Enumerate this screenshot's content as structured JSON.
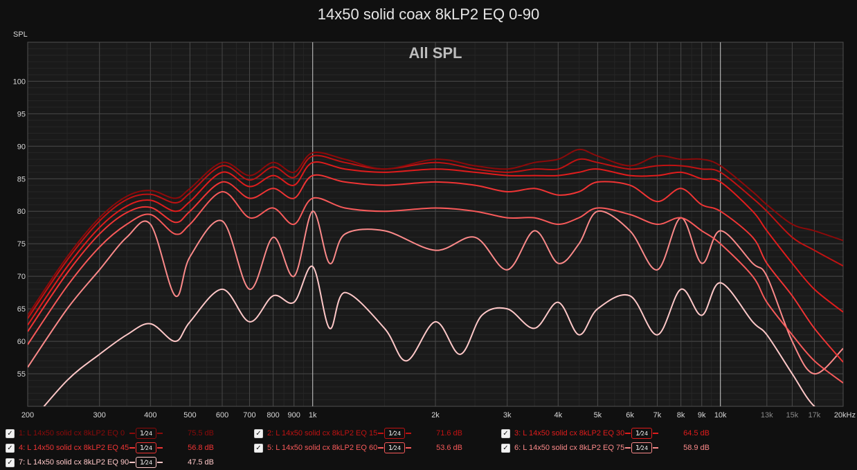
{
  "chart_data": {
    "type": "line",
    "title": "14x50 solid coax 8kLP2 EQ 0-90",
    "subtitle": "All SPL",
    "ylabel": "SPL",
    "xscale": "log",
    "xlim": [
      200,
      20000
    ],
    "ylim": [
      50,
      106
    ],
    "grid": true,
    "x_ticks": [
      {
        "value": 200,
        "label": "200"
      },
      {
        "value": 300,
        "label": "300"
      },
      {
        "value": 400,
        "label": "400"
      },
      {
        "value": 500,
        "label": "500"
      },
      {
        "value": 600,
        "label": "600"
      },
      {
        "value": 700,
        "label": "700"
      },
      {
        "value": 800,
        "label": "800"
      },
      {
        "value": 900,
        "label": "900"
      },
      {
        "value": 1000,
        "label": "1k"
      },
      {
        "value": 2000,
        "label": "2k"
      },
      {
        "value": 3000,
        "label": "3k"
      },
      {
        "value": 4000,
        "label": "4k"
      },
      {
        "value": 5000,
        "label": "5k"
      },
      {
        "value": 6000,
        "label": "6k"
      },
      {
        "value": 7000,
        "label": "7k"
      },
      {
        "value": 8000,
        "label": "8k"
      },
      {
        "value": 9000,
        "label": "9k"
      },
      {
        "value": 10000,
        "label": "10k"
      },
      {
        "value": 13000,
        "label": "13k",
        "dim": true
      },
      {
        "value": 15000,
        "label": "15k",
        "dim": true
      },
      {
        "value": 17000,
        "label": "17k",
        "dim": true
      },
      {
        "value": 20000,
        "label": "20kHz"
      }
    ],
    "y_ticks": [
      {
        "value": 55,
        "label": "55"
      },
      {
        "value": 60,
        "label": "60"
      },
      {
        "value": 65,
        "label": "65"
      },
      {
        "value": 70,
        "label": "70"
      },
      {
        "value": 75,
        "label": "75"
      },
      {
        "value": 80,
        "label": "80"
      },
      {
        "value": 85,
        "label": "85"
      },
      {
        "value": 90,
        "label": "90"
      },
      {
        "value": 95,
        "label": "95"
      },
      {
        "value": 100,
        "label": "100"
      }
    ],
    "series": [
      {
        "name": "1: L 14x50 solid cx 8kLP2 EQ 0",
        "smoothing": "1/24",
        "value_label": "75.5 dB",
        "color": "#8c0a0a",
        "x": [
          200,
          250,
          300,
          350,
          400,
          460,
          500,
          600,
          700,
          800,
          900,
          1000,
          1200,
          1500,
          2000,
          2500,
          3000,
          3500,
          4000,
          4500,
          5000,
          6000,
          7000,
          8000,
          9000,
          10000,
          12000,
          13000,
          15000,
          17000,
          20000
        ],
        "y": [
          64,
          73,
          79,
          82.3,
          83.2,
          82,
          83.5,
          87.5,
          85.5,
          87.5,
          86,
          89,
          88,
          86.5,
          88,
          87,
          86.5,
          87.5,
          88,
          89.5,
          88.5,
          87,
          88.5,
          88,
          88,
          87,
          83,
          81,
          78,
          77,
          75.5
        ]
      },
      {
        "name": "2: L 14x50 solid cx 8kLP2 EQ 15",
        "smoothing": "1/24",
        "value_label": "71.6 dB",
        "color": "#c01212",
        "x": [
          200,
          250,
          300,
          350,
          400,
          460,
          500,
          600,
          700,
          800,
          900,
          1000,
          1200,
          1500,
          2000,
          2500,
          3000,
          3500,
          4000,
          4500,
          5000,
          6000,
          7000,
          8000,
          9000,
          10000,
          12000,
          13000,
          15000,
          17000,
          20000
        ],
        "y": [
          63.5,
          72.5,
          78.5,
          81.8,
          82.6,
          81.3,
          82.8,
          87,
          84.8,
          86.8,
          85.2,
          88.5,
          87.5,
          86.5,
          87.5,
          86.5,
          86,
          86.5,
          86.5,
          88,
          87.5,
          86.5,
          87,
          87,
          86.5,
          86,
          82,
          80,
          76,
          74,
          71.6
        ]
      },
      {
        "name": "3: L 14x50 solid cx 8kLP2 EQ 30",
        "smoothing": "1/24",
        "value_label": "64.5 dB",
        "color": "#e01c1c",
        "x": [
          200,
          250,
          300,
          350,
          400,
          460,
          500,
          600,
          700,
          800,
          900,
          1000,
          1200,
          1500,
          2000,
          2500,
          3000,
          3500,
          4000,
          4500,
          5000,
          6000,
          7000,
          8000,
          9000,
          10000,
          12000,
          13000,
          15000,
          17000,
          20000
        ],
        "y": [
          62.5,
          71.5,
          77.5,
          80.8,
          81.7,
          80,
          81.5,
          86,
          83.8,
          85.5,
          84,
          87.5,
          86.5,
          86,
          86.5,
          86,
          85.5,
          85.5,
          85.5,
          86,
          86.5,
          85.5,
          85.5,
          86,
          85,
          84.5,
          80,
          77,
          72,
          68,
          64.5
        ]
      },
      {
        "name": "4: L 14x50 solid cx 8kLP2 EQ 45",
        "smoothing": "1/24",
        "value_label": "56.8 dB",
        "color": "#f03434",
        "x": [
          200,
          250,
          300,
          350,
          400,
          460,
          500,
          600,
          700,
          800,
          900,
          1000,
          1200,
          1500,
          2000,
          2500,
          3000,
          3500,
          4000,
          4500,
          5000,
          6000,
          7000,
          8000,
          9000,
          10000,
          12000,
          13000,
          15000,
          17000,
          20000
        ],
        "y": [
          61.5,
          70.5,
          76.5,
          79.8,
          80.6,
          78.3,
          80,
          84.5,
          82,
          83.5,
          82,
          85.5,
          84.5,
          84,
          84.5,
          84,
          83,
          83.5,
          82.5,
          83,
          84.5,
          84,
          81.5,
          83.5,
          81,
          80,
          76,
          72,
          67,
          62,
          56.8
        ]
      },
      {
        "name": "5: L 14x50 solid cx 8kLP2 EQ 60",
        "smoothing": "1/24",
        "value_label": "53.6 dB",
        "color": "#f85a5a",
        "x": [
          200,
          250,
          300,
          350,
          400,
          460,
          500,
          600,
          700,
          800,
          900,
          1000,
          1200,
          1500,
          2000,
          2500,
          3000,
          3500,
          4000,
          4500,
          5000,
          6000,
          7000,
          8000,
          9000,
          10000,
          12000,
          13000,
          15000,
          17000,
          20000
        ],
        "y": [
          59.5,
          68.5,
          74.5,
          78,
          79.5,
          76.5,
          78,
          83,
          79,
          80.5,
          78,
          82,
          80.5,
          80,
          80.5,
          80,
          79,
          79,
          78,
          79,
          80.5,
          79.5,
          78,
          79,
          77,
          75,
          70,
          66,
          61,
          57,
          53.6
        ]
      },
      {
        "name": "6: L 14x50 solid cx 8kLP2 EQ 75",
        "smoothing": "1/24",
        "value_label": "58.9 dB",
        "color": "#fc8a8a",
        "x": [
          200,
          250,
          300,
          350,
          400,
          460,
          500,
          600,
          700,
          800,
          900,
          1000,
          1100,
          1200,
          1500,
          2000,
          2500,
          3000,
          3500,
          4000,
          4500,
          5000,
          6000,
          7000,
          8000,
          9000,
          10000,
          12000,
          13000,
          15000,
          17000,
          20000
        ],
        "y": [
          56,
          65,
          71,
          76,
          78,
          67,
          73,
          78.5,
          68,
          76,
          70,
          80,
          72,
          76.5,
          77,
          74,
          76,
          71,
          77,
          72,
          75,
          80,
          77,
          71,
          79,
          72,
          77,
          72,
          70,
          60,
          55,
          58.9
        ]
      },
      {
        "name": "7: L 14x50 solid cx 8kLP2 EQ 90",
        "smoothing": "1/24",
        "value_label": "47.5 dB",
        "color": "#ffc8c8",
        "x": [
          200,
          250,
          300,
          350,
          400,
          460,
          500,
          600,
          700,
          800,
          900,
          1000,
          1100,
          1200,
          1500,
          1700,
          2000,
          2300,
          2600,
          3000,
          3500,
          4000,
          4500,
          5000,
          6000,
          7000,
          8000,
          9000,
          10000,
          12000,
          13000,
          15000,
          17000,
          20000
        ],
        "y": [
          47,
          54,
          58,
          61,
          62.7,
          60,
          63,
          68,
          63,
          67,
          66,
          71.5,
          62,
          67.5,
          62,
          57,
          63,
          58,
          64,
          65,
          62,
          66,
          61,
          65,
          67,
          61,
          68,
          64,
          69,
          63,
          61,
          55,
          50,
          47.5
        ]
      }
    ]
  },
  "colors": {
    "background": "#101010",
    "plot_background": "#1a1a1a",
    "grid_major": "#484848",
    "grid_minor": "#262626",
    "cursor": "#c4c4c4"
  },
  "cursor_x": [
    1000,
    10000
  ]
}
